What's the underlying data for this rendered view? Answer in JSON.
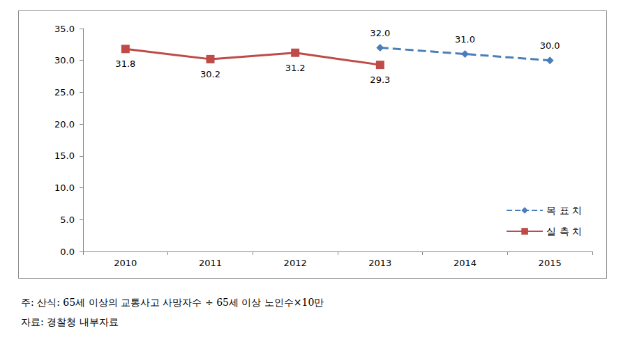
{
  "chart_data": {
    "type": "line",
    "categories": [
      "2010",
      "2011",
      "2012",
      "2013",
      "2014",
      "2015"
    ],
    "series": [
      {
        "name": "목 표 치",
        "color": "#4a7ebb",
        "values": [
          null,
          null,
          null,
          32.0,
          31.0,
          30.0
        ],
        "value_labels": [
          null,
          null,
          null,
          "32.0",
          "31.0",
          "30.0"
        ],
        "line_style": "dashed",
        "marker": "diamond"
      },
      {
        "name": "실 측 치",
        "color": "#be4b48",
        "values": [
          31.8,
          30.2,
          31.2,
          29.3,
          null,
          null
        ],
        "line_style": "solid",
        "marker": "square"
      }
    ],
    "ylim": [
      0,
      35
    ],
    "yticks": [
      {
        "value": 0,
        "label": "0.0"
      },
      {
        "value": 5,
        "label": "5.0"
      },
      {
        "value": 10,
        "label": "10.0"
      },
      {
        "value": 15,
        "label": "15.0"
      },
      {
        "value": 20,
        "label": "20.0"
      },
      {
        "value": 25,
        "label": "25.0"
      },
      {
        "value": 30,
        "label": "30.0"
      },
      {
        "value": 35,
        "label": "35.0"
      }
    ],
    "grid": false,
    "legend": "lower right",
    "data_labels": true,
    "annotations": [
      "주: 산식: 65세 이상의 교통사고 사망자수 ÷ 65세 이상 노인수×10만",
      "자료: 경찰청 내부자료"
    ]
  }
}
